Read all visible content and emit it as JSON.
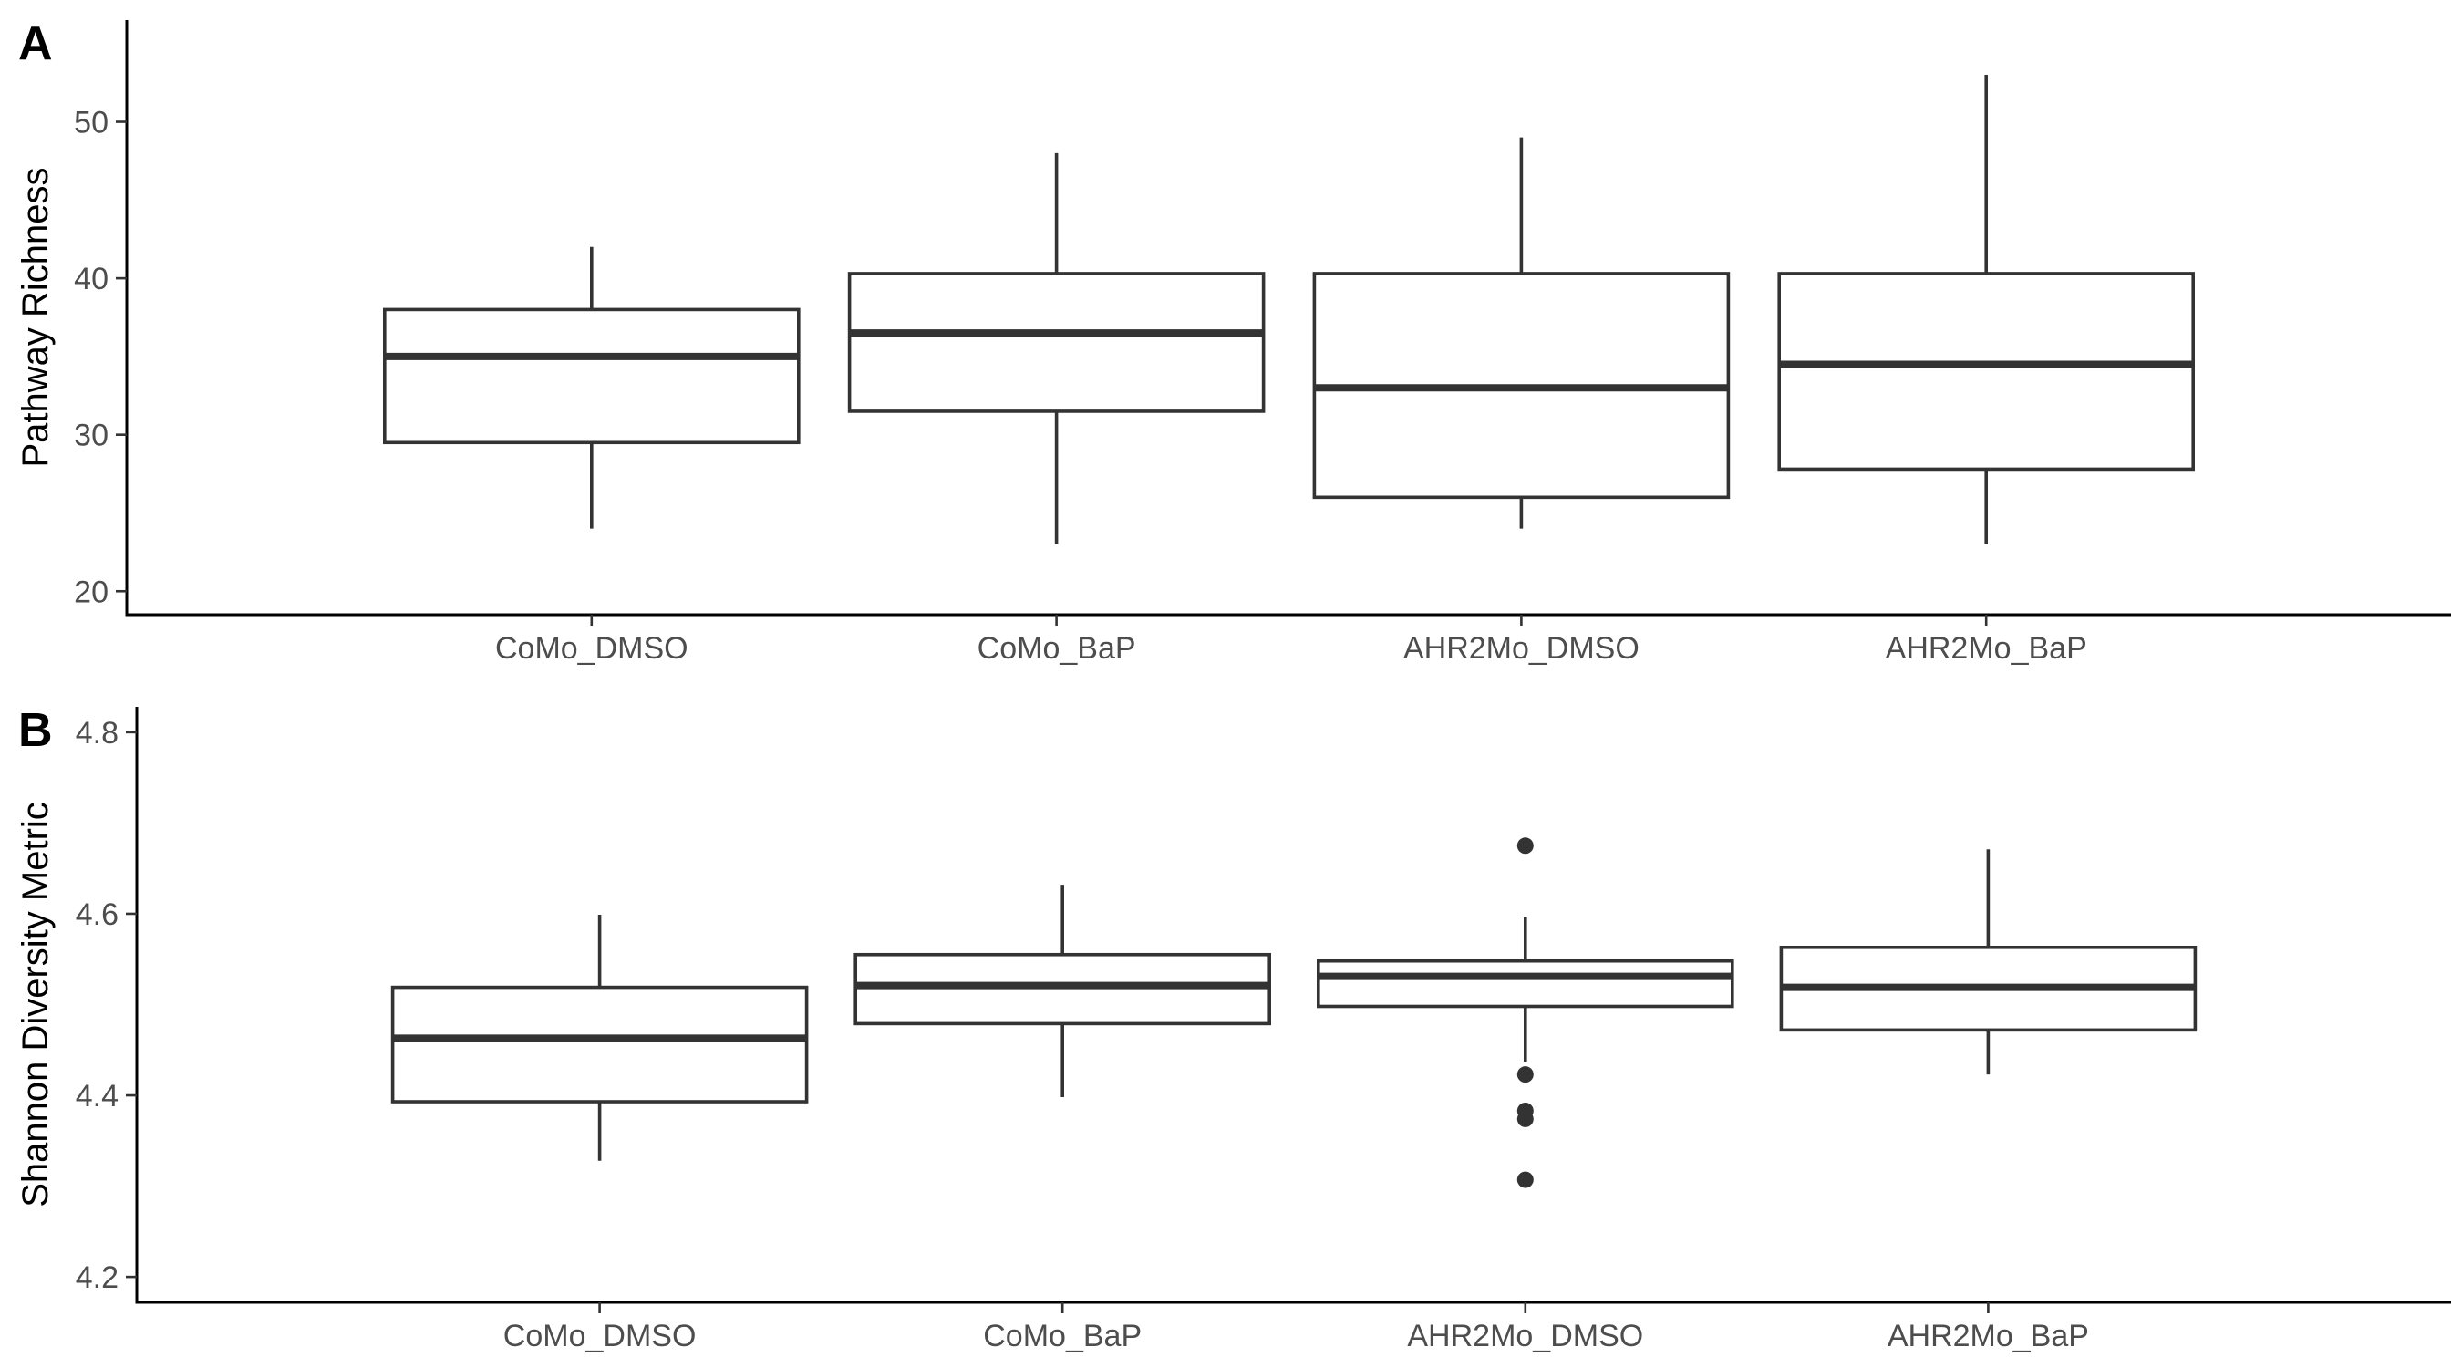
{
  "chart_data": [
    {
      "type": "box",
      "panel_tag": "A",
      "ylabel": "Pathway Richness",
      "xlabel": "",
      "ylim": [
        18.5,
        56.5
      ],
      "yticks": [
        20,
        30,
        40,
        50
      ],
      "categories": [
        "CoMo_DMSO",
        "CoMo_BaP",
        "AHR2Mo_DMSO",
        "AHR2Mo_BaP"
      ],
      "boxes": [
        {
          "min": 24,
          "q1": 29.5,
          "median": 35,
          "q3": 38,
          "max": 42,
          "outliers": []
        },
        {
          "min": 23,
          "q1": 31.5,
          "median": 36.5,
          "q3": 40.3,
          "max": 48,
          "outliers": []
        },
        {
          "min": 24,
          "q1": 26,
          "median": 33,
          "q3": 40.3,
          "max": 49,
          "outliers": []
        },
        {
          "min": 23,
          "q1": 27.8,
          "median": 34.5,
          "q3": 40.3,
          "max": 53,
          "outliers": []
        }
      ]
    },
    {
      "type": "box",
      "panel_tag": "B",
      "ylabel": "Shannon Diversity Metric",
      "xlabel": "",
      "ylim": [
        4.172,
        4.828
      ],
      "yticks": [
        4.2,
        4.4,
        4.6,
        4.8
      ],
      "categories": [
        "CoMo_DMSO",
        "CoMo_BaP",
        "AHR2Mo_DMSO",
        "AHR2Mo_BaP"
      ],
      "boxes": [
        {
          "min": 4.328,
          "q1": 4.393,
          "median": 4.463,
          "q3": 4.519,
          "max": 4.599,
          "outliers": []
        },
        {
          "min": 4.398,
          "q1": 4.479,
          "median": 4.521,
          "q3": 4.555,
          "max": 4.632,
          "outliers": []
        },
        {
          "min": 4.437,
          "q1": 4.498,
          "median": 4.531,
          "q3": 4.548,
          "max": 4.596,
          "outliers": [
            4.675,
            4.423,
            4.383,
            4.374,
            4.307
          ]
        },
        {
          "min": 4.423,
          "q1": 4.472,
          "median": 4.519,
          "q3": 4.563,
          "max": 4.671,
          "outliers": []
        }
      ]
    }
  ],
  "colors": {
    "box_stroke": "#333333",
    "box_fill": "#ffffff",
    "axis": "#000000",
    "tick_label": "#4d4d4d"
  }
}
